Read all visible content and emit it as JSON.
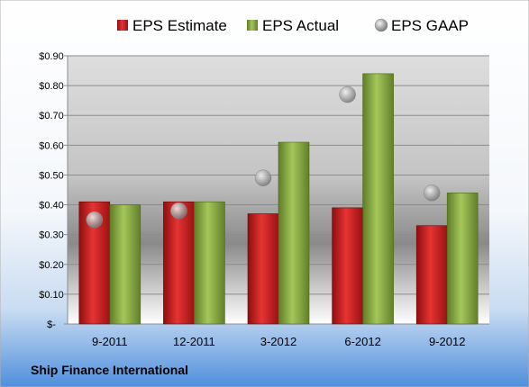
{
  "chart_data": {
    "type": "bar",
    "categories": [
      "9-2011",
      "12-2011",
      "3-2012",
      "6-2012",
      "9-2012"
    ],
    "series": [
      {
        "name": "EPS Estimate",
        "kind": "bar",
        "color": "#cc1f1f",
        "values": [
          0.41,
          0.41,
          0.37,
          0.39,
          0.33
        ]
      },
      {
        "name": "EPS Actual",
        "kind": "bar",
        "color": "#8aac3f",
        "values": [
          0.4,
          0.41,
          0.61,
          0.84,
          0.44
        ]
      },
      {
        "name": "EPS GAAP",
        "kind": "marker",
        "color": "#a8a8a8",
        "values": [
          0.35,
          0.38,
          0.49,
          0.77,
          0.44
        ]
      }
    ],
    "y_ticks": [
      "$-",
      "$0.10",
      "$0.20",
      "$0.30",
      "$0.40",
      "$0.50",
      "$0.60",
      "$0.70",
      "$0.80",
      "$0.90"
    ],
    "ylim": [
      0,
      0.9
    ],
    "grid": true,
    "legend_position": "top",
    "footer": "Ship Finance International"
  }
}
